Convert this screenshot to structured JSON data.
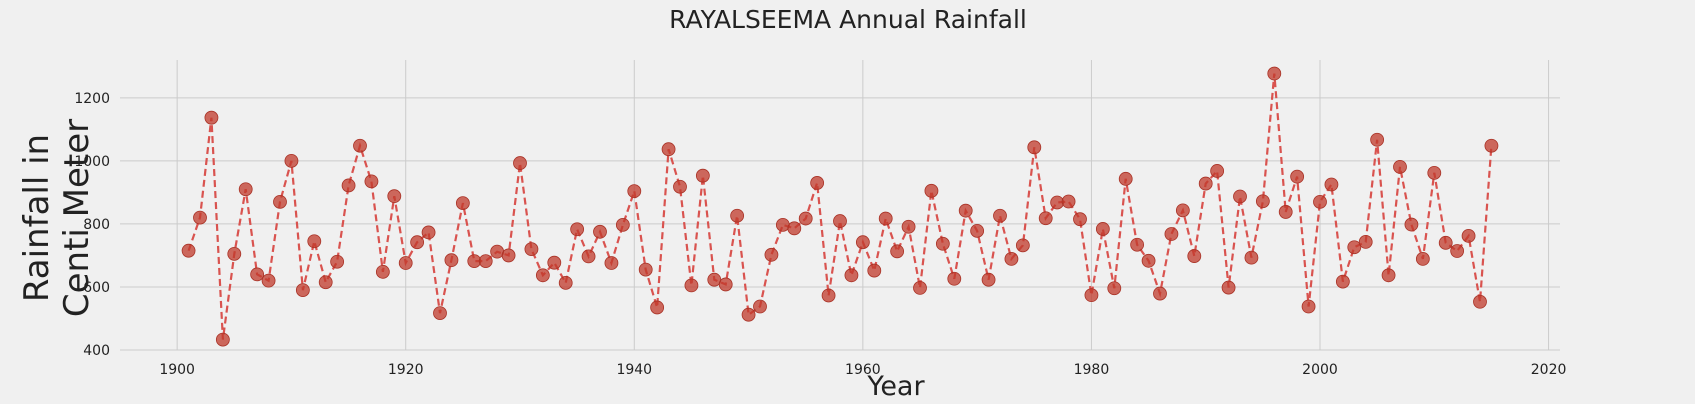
{
  "chart_data": {
    "type": "line",
    "title": "RAYALSEEMA Annual Rainfall",
    "xlabel": "Year",
    "ylabel": [
      "Rainfall in",
      "Centi Meter"
    ],
    "xlim": [
      1895,
      2021
    ],
    "ylim": [
      400,
      1320
    ],
    "xticks": [
      1900,
      1920,
      1940,
      1960,
      1980,
      2000,
      2020
    ],
    "yticks": [
      400,
      600,
      800,
      1000,
      1200
    ],
    "grid": true,
    "series": [
      {
        "line_color": "#d9534f",
        "marker_color": "#c0392b",
        "x": [
          1901,
          1902,
          1903,
          1904,
          1905,
          1906,
          1907,
          1908,
          1909,
          1910,
          1911,
          1912,
          1913,
          1914,
          1915,
          1916,
          1917,
          1918,
          1919,
          1920,
          1921,
          1922,
          1923,
          1924,
          1925,
          1926,
          1927,
          1928,
          1929,
          1930,
          1931,
          1932,
          1933,
          1934,
          1935,
          1936,
          1937,
          1938,
          1939,
          1940,
          1941,
          1942,
          1943,
          1944,
          1945,
          1946,
          1947,
          1948,
          1949,
          1950,
          1951,
          1952,
          1953,
          1954,
          1955,
          1956,
          1957,
          1958,
          1959,
          1960,
          1961,
          1962,
          1963,
          1964,
          1965,
          1966,
          1967,
          1968,
          1969,
          1970,
          1971,
          1972,
          1973,
          1974,
          1975,
          1976,
          1977,
          1978,
          1979,
          1980,
          1981,
          1982,
          1983,
          1984,
          1985,
          1986,
          1987,
          1988,
          1989,
          1990,
          1991,
          1992,
          1993,
          1994,
          1995,
          1996,
          1997,
          1998,
          1999,
          2000,
          2001,
          2002,
          2003,
          2004,
          2005,
          2006,
          2007,
          2008,
          2009,
          2010,
          2011,
          2012,
          2013,
          2014,
          2015
        ],
        "y": [
          715,
          820,
          1137,
          433,
          705,
          910,
          640,
          620,
          870,
          1000,
          590,
          745,
          615,
          680,
          922,
          1048,
          935,
          648,
          888,
          676,
          742,
          773,
          517,
          685,
          866,
          682,
          682,
          712,
          700,
          993,
          720,
          637,
          677,
          613,
          783,
          697,
          775,
          676,
          797,
          904,
          655,
          535,
          1037,
          918,
          605,
          953,
          623,
          608,
          826,
          512,
          538,
          702,
          797,
          786,
          817,
          930,
          573,
          809,
          637,
          742,
          652,
          817,
          713,
          791,
          597,
          905,
          737,
          626,
          842,
          778,
          623,
          826,
          689,
          732,
          1043,
          818,
          868,
          871,
          815,
          574,
          784,
          596,
          943,
          734,
          683,
          579,
          768,
          843,
          698,
          928,
          968,
          598,
          887,
          693,
          872,
          1277,
          838,
          950,
          538,
          870,
          925,
          617,
          726,
          743,
          1067,
          637,
          981,
          798,
          689,
          962,
          740,
          714,
          762,
          553,
          1048
        ]
      }
    ]
  }
}
